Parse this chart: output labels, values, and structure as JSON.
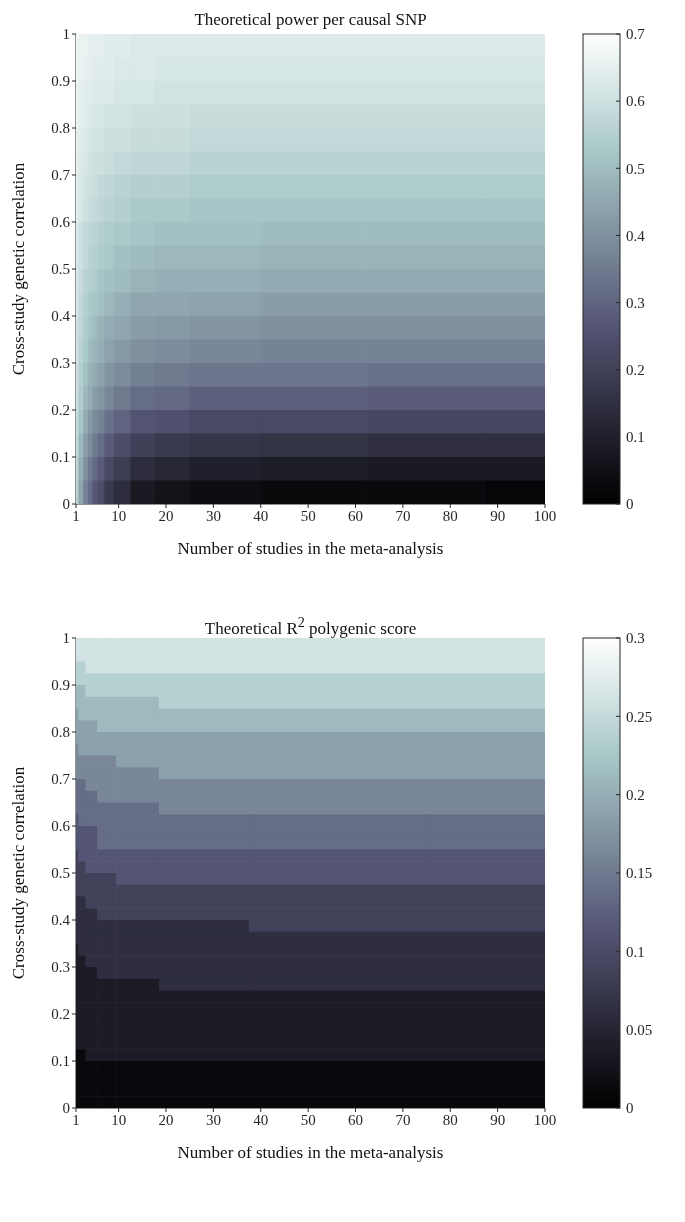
{
  "chart_data": [
    {
      "type": "heatmap",
      "title": "Theoretical power per causal SNP",
      "xlabel": "Number of studies in the meta-analysis",
      "ylabel": "Cross-study genetic correlation",
      "x": [
        1,
        2,
        3,
        4,
        5,
        6,
        8,
        10,
        15,
        20,
        30,
        50,
        75,
        100
      ],
      "y": [
        0.975,
        0.925,
        0.875,
        0.825,
        0.775,
        0.725,
        0.675,
        0.625,
        0.575,
        0.525,
        0.475,
        0.425,
        0.375,
        0.325,
        0.275,
        0.225,
        0.175,
        0.125,
        0.075,
        0.025
      ],
      "cells": [
        [
          0.67,
          0.66,
          0.66,
          0.65,
          0.65,
          0.65,
          0.64,
          0.64,
          0.63,
          0.63,
          0.63,
          0.63,
          0.63,
          0.63
        ],
        [
          0.67,
          0.66,
          0.65,
          0.65,
          0.64,
          0.64,
          0.64,
          0.63,
          0.63,
          0.62,
          0.62,
          0.62,
          0.62,
          0.62
        ],
        [
          0.66,
          0.65,
          0.64,
          0.64,
          0.63,
          0.63,
          0.63,
          0.62,
          0.62,
          0.61,
          0.61,
          0.61,
          0.61,
          0.61
        ],
        [
          0.66,
          0.65,
          0.64,
          0.63,
          0.62,
          0.62,
          0.61,
          0.61,
          0.6,
          0.6,
          0.59,
          0.59,
          0.59,
          0.59
        ],
        [
          0.65,
          0.64,
          0.63,
          0.62,
          0.61,
          0.61,
          0.6,
          0.6,
          0.59,
          0.59,
          0.58,
          0.58,
          0.58,
          0.58
        ],
        [
          0.65,
          0.63,
          0.62,
          0.61,
          0.6,
          0.6,
          0.59,
          0.58,
          0.57,
          0.57,
          0.56,
          0.56,
          0.56,
          0.56
        ],
        [
          0.64,
          0.62,
          0.61,
          0.6,
          0.59,
          0.58,
          0.57,
          0.56,
          0.55,
          0.55,
          0.54,
          0.54,
          0.54,
          0.54
        ],
        [
          0.64,
          0.62,
          0.6,
          0.59,
          0.58,
          0.57,
          0.56,
          0.55,
          0.53,
          0.53,
          0.52,
          0.52,
          0.52,
          0.52
        ],
        [
          0.63,
          0.6,
          0.58,
          0.57,
          0.56,
          0.55,
          0.54,
          0.53,
          0.52,
          0.51,
          0.51,
          0.5,
          0.5,
          0.5
        ],
        [
          0.63,
          0.6,
          0.58,
          0.56,
          0.55,
          0.54,
          0.53,
          0.51,
          0.5,
          0.49,
          0.49,
          0.48,
          0.48,
          0.48
        ],
        [
          0.62,
          0.59,
          0.56,
          0.55,
          0.54,
          0.52,
          0.51,
          0.5,
          0.48,
          0.47,
          0.47,
          0.46,
          0.46,
          0.46
        ],
        [
          0.62,
          0.58,
          0.55,
          0.53,
          0.52,
          0.51,
          0.49,
          0.47,
          0.45,
          0.45,
          0.44,
          0.43,
          0.43,
          0.43
        ],
        [
          0.61,
          0.57,
          0.54,
          0.52,
          0.5,
          0.48,
          0.46,
          0.45,
          0.43,
          0.42,
          0.41,
          0.4,
          0.4,
          0.4
        ],
        [
          0.61,
          0.56,
          0.53,
          0.5,
          0.48,
          0.47,
          0.44,
          0.42,
          0.4,
          0.39,
          0.38,
          0.37,
          0.37,
          0.37
        ],
        [
          0.6,
          0.55,
          0.51,
          0.48,
          0.46,
          0.44,
          0.41,
          0.39,
          0.36,
          0.35,
          0.34,
          0.34,
          0.33,
          0.33
        ],
        [
          0.6,
          0.54,
          0.49,
          0.46,
          0.43,
          0.41,
          0.38,
          0.35,
          0.32,
          0.31,
          0.29,
          0.29,
          0.28,
          0.28
        ],
        [
          0.59,
          0.52,
          0.46,
          0.42,
          0.39,
          0.37,
          0.33,
          0.3,
          0.26,
          0.25,
          0.23,
          0.23,
          0.22,
          0.22
        ],
        [
          0.58,
          0.49,
          0.43,
          0.39,
          0.35,
          0.32,
          0.28,
          0.24,
          0.2,
          0.18,
          0.17,
          0.16,
          0.15,
          0.15
        ],
        [
          0.57,
          0.47,
          0.4,
          0.35,
          0.31,
          0.28,
          0.23,
          0.19,
          0.14,
          0.12,
          0.1,
          0.09,
          0.08,
          0.08
        ],
        [
          0.56,
          0.45,
          0.37,
          0.32,
          0.27,
          0.24,
          0.18,
          0.14,
          0.08,
          0.06,
          0.04,
          0.03,
          0.03,
          0.02
        ]
      ],
      "xlim": [
        1,
        100
      ],
      "xticks": [
        1,
        10,
        20,
        30,
        40,
        50,
        60,
        70,
        80,
        90,
        100
      ],
      "ylim": [
        0,
        1
      ],
      "yticks": [
        0,
        0.1,
        0.2,
        0.3,
        0.4,
        0.5,
        0.6,
        0.7,
        0.8,
        0.9,
        1
      ],
      "clim": [
        0,
        0.7
      ],
      "cticks": [
        0,
        0.1,
        0.2,
        0.3,
        0.4,
        0.5,
        0.6,
        0.7
      ]
    },
    {
      "type": "heatmap",
      "title": "Theoretical R$^{2}$ polygenic score",
      "xlabel": "Number of studies in the meta-analysis",
      "ylabel": "Cross-study genetic correlation",
      "x": [
        1,
        2,
        4,
        7,
        12,
        25,
        50,
        100
      ],
      "y": [
        0.9875,
        0.9625,
        0.9375,
        0.9125,
        0.8875,
        0.8625,
        0.8375,
        0.8125,
        0.7875,
        0.7625,
        0.7375,
        0.7125,
        0.6875,
        0.6625,
        0.6375,
        0.6125,
        0.5875,
        0.5625,
        0.5375,
        0.5125,
        0.4875,
        0.4625,
        0.4375,
        0.4125,
        0.3875,
        0.3625,
        0.3375,
        0.3125,
        0.2875,
        0.2625,
        0.2375,
        0.2125,
        0.1875,
        0.1625,
        0.1375,
        0.1125,
        0.0875,
        0.0625,
        0.0375,
        0.0125
      ],
      "cells": [
        [
          0.2625,
          0.2625,
          0.2625,
          0.2625,
          0.2625,
          0.2625,
          0.2625,
          0.2625
        ],
        [
          0.2625,
          0.2625,
          0.2625,
          0.2625,
          0.2625,
          0.2625,
          0.2625,
          0.2625
        ],
        [
          0.2375,
          0.2375,
          0.2625,
          0.2625,
          0.2625,
          0.2625,
          0.2625,
          0.2625
        ],
        [
          0.2375,
          0.2375,
          0.2375,
          0.2375,
          0.2375,
          0.2375,
          0.2375,
          0.2375
        ],
        [
          0.2125,
          0.2125,
          0.2375,
          0.2375,
          0.2375,
          0.2375,
          0.2375,
          0.2375
        ],
        [
          0.2125,
          0.2125,
          0.2125,
          0.2125,
          0.2125,
          0.2375,
          0.2375,
          0.2375
        ],
        [
          0.1875,
          0.2125,
          0.2125,
          0.2125,
          0.2125,
          0.2125,
          0.2125,
          0.2125
        ],
        [
          0.1875,
          0.1875,
          0.1875,
          0.2125,
          0.2125,
          0.2125,
          0.2125,
          0.2125
        ],
        [
          0.1875,
          0.1875,
          0.1875,
          0.1875,
          0.1875,
          0.1875,
          0.1875,
          0.1875
        ],
        [
          0.1625,
          0.1875,
          0.1875,
          0.1875,
          0.1875,
          0.1875,
          0.1875,
          0.1875
        ],
        [
          0.1625,
          0.1625,
          0.1625,
          0.1625,
          0.1875,
          0.1875,
          0.1875,
          0.1875
        ],
        [
          0.1625,
          0.1625,
          0.1625,
          0.1625,
          0.1625,
          0.1875,
          0.1875,
          0.1875
        ],
        [
          0.1375,
          0.1375,
          0.1625,
          0.1625,
          0.1625,
          0.1625,
          0.1625,
          0.1625
        ],
        [
          0.1375,
          0.1375,
          0.1375,
          0.1625,
          0.1625,
          0.1625,
          0.1625,
          0.1625
        ],
        [
          0.1375,
          0.1375,
          0.1375,
          0.1375,
          0.1375,
          0.1625,
          0.1625,
          0.1625
        ],
        [
          0.1125,
          0.1375,
          0.1375,
          0.1375,
          0.1375,
          0.1375,
          0.1375,
          0.1375
        ],
        [
          0.1125,
          0.1125,
          0.1125,
          0.1375,
          0.1375,
          0.1375,
          0.1375,
          0.1375
        ],
        [
          0.1125,
          0.1125,
          0.1125,
          0.1375,
          0.1375,
          0.1375,
          0.1375,
          0.1375
        ],
        [
          0.0875,
          0.1125,
          0.1125,
          0.1125,
          0.1125,
          0.1125,
          0.1125,
          0.1125
        ],
        [
          0.0875,
          0.0875,
          0.1125,
          0.1125,
          0.1125,
          0.1125,
          0.1125,
          0.1125
        ],
        [
          0.0875,
          0.0875,
          0.0875,
          0.0875,
          0.1125,
          0.1125,
          0.1125,
          0.1125
        ],
        [
          0.0875,
          0.0875,
          0.0875,
          0.0875,
          0.0875,
          0.0875,
          0.0875,
          0.0875
        ],
        [
          0.0625,
          0.0625,
          0.0875,
          0.0875,
          0.0875,
          0.0875,
          0.0875,
          0.0875
        ],
        [
          0.0625,
          0.0625,
          0.0625,
          0.0875,
          0.0875,
          0.0875,
          0.0875,
          0.0875
        ],
        [
          0.0625,
          0.0625,
          0.0625,
          0.0625,
          0.0625,
          0.0625,
          0.0875,
          0.0875
        ],
        [
          0.0625,
          0.0625,
          0.0625,
          0.0625,
          0.0625,
          0.0625,
          0.0625,
          0.0625
        ],
        [
          0.0375,
          0.0625,
          0.0625,
          0.0625,
          0.0625,
          0.0625,
          0.0625,
          0.0625
        ],
        [
          0.0375,
          0.0375,
          0.0625,
          0.0625,
          0.0625,
          0.0625,
          0.0625,
          0.0625
        ],
        [
          0.0375,
          0.0375,
          0.0375,
          0.0625,
          0.0625,
          0.0625,
          0.0625,
          0.0625
        ],
        [
          0.0375,
          0.0375,
          0.0375,
          0.0375,
          0.0375,
          0.0625,
          0.0625,
          0.0625
        ],
        [
          0.0375,
          0.0375,
          0.0375,
          0.0375,
          0.0375,
          0.0375,
          0.0375,
          0.0375
        ],
        [
          0.0375,
          0.0375,
          0.0375,
          0.0375,
          0.0375,
          0.0375,
          0.0375,
          0.0375
        ],
        [
          0.0375,
          0.0375,
          0.0375,
          0.0375,
          0.0375,
          0.0375,
          0.0375,
          0.0375
        ],
        [
          0.0375,
          0.0375,
          0.0375,
          0.0375,
          0.0375,
          0.0375,
          0.0375,
          0.0375
        ],
        [
          0.0375,
          0.0375,
          0.0375,
          0.0375,
          0.0375,
          0.0375,
          0.0375,
          0.0375
        ],
        [
          0.0125,
          0.0125,
          0.0375,
          0.0375,
          0.0375,
          0.0375,
          0.0375,
          0.0375
        ],
        [
          0.0125,
          0.0125,
          0.0125,
          0.0125,
          0.0125,
          0.0125,
          0.0125,
          0.0125
        ],
        [
          0.0125,
          0.0125,
          0.0125,
          0.0125,
          0.0125,
          0.0125,
          0.0125,
          0.0125
        ],
        [
          0.0125,
          0.0125,
          0.0125,
          0.0125,
          0.0125,
          0.0125,
          0.0125,
          0.0125
        ],
        [
          0.0125,
          0.0125,
          0.0125,
          0.0125,
          0.0125,
          0.0125,
          0.0125,
          0.0125
        ]
      ],
      "xlim": [
        1,
        100
      ],
      "xticks": [
        1,
        10,
        20,
        30,
        40,
        50,
        60,
        70,
        80,
        90,
        100
      ],
      "ylim": [
        0,
        1
      ],
      "yticks": [
        0,
        0.1,
        0.2,
        0.3,
        0.4,
        0.5,
        0.6,
        0.7,
        0.8,
        0.9,
        1
      ],
      "clim": [
        0,
        0.3
      ],
      "cticks": [
        0,
        0.05,
        0.1,
        0.15,
        0.2,
        0.25,
        0.3
      ]
    }
  ]
}
